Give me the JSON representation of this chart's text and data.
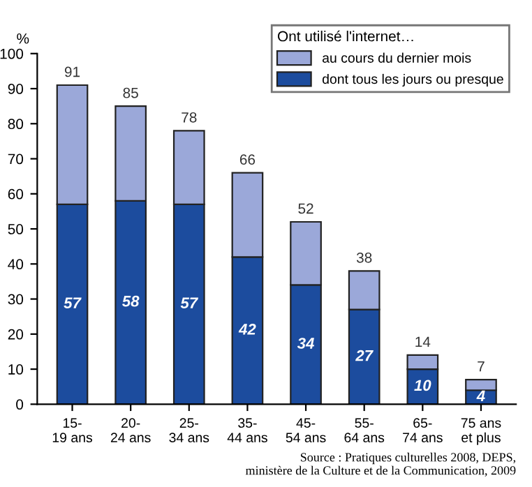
{
  "chart_data": {
    "type": "bar",
    "stacked": true,
    "ylabel": "%",
    "legend_title": "Ont utilisé l'internet…",
    "categories": [
      "15-\n19 ans",
      "20-\n24 ans",
      "25-\n34 ans",
      "35-\n44 ans",
      "45-\n54 ans",
      "55-\n64 ans",
      "65-\n74 ans",
      "75 ans\net plus"
    ],
    "series": [
      {
        "name": "dont tous les jours ou presque",
        "color": "#1c4c9e",
        "values": [
          57,
          58,
          57,
          42,
          34,
          27,
          10,
          4
        ],
        "value_labels": [
          "57",
          "58",
          "57",
          "42",
          "34",
          "27",
          "10",
          "4"
        ]
      },
      {
        "name": "au cours du dernier mois",
        "color": "#9ba8d9",
        "values": [
          34,
          27,
          21,
          24,
          18,
          11,
          4,
          3
        ]
      }
    ],
    "totals": [
      "91",
      "85",
      "78",
      "66",
      "52",
      "38",
      "14",
      "7"
    ],
    "ylim": [
      0,
      100
    ],
    "yticks": [
      0,
      10,
      20,
      30,
      40,
      50,
      60,
      70,
      80,
      90,
      100
    ],
    "grid": false,
    "legend": "top right",
    "annotations": [
      "Source : Pratiques culturelles 2008, DEPS,\nministère de la Culture et de la Communication, 2009"
    ]
  }
}
